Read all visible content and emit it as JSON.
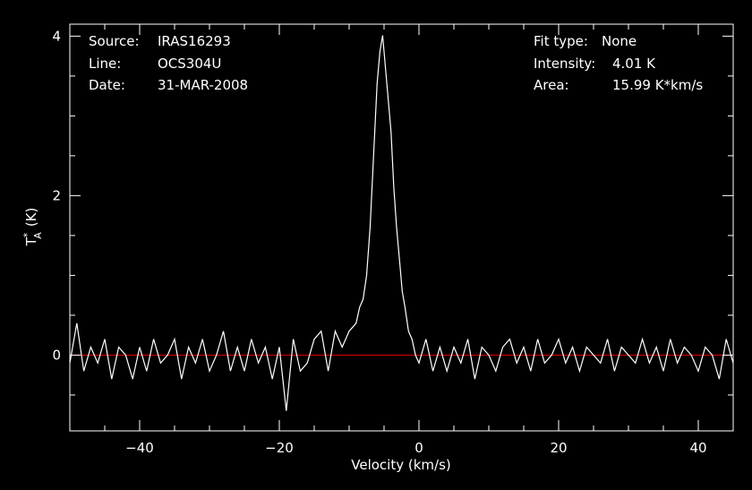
{
  "info": {
    "source_label": "Source:",
    "source_value": "IRAS16293",
    "line_label": "Line:",
    "line_value": "OCS304U",
    "date_label": "Date:",
    "date_value": "31-MAR-2008",
    "fit_label": "Fit type:",
    "fit_value": "None",
    "intensity_label": "Intensity:",
    "intensity_value": "4.01 K",
    "area_label": "Area:",
    "area_value": "15.99 K*km/s"
  },
  "colors": {
    "background": "#000000",
    "foreground": "#ffffff",
    "baseline": "#cc0000"
  },
  "chart_data": {
    "type": "line",
    "title": "",
    "xlabel": "Velocity (km/s)",
    "ylabel_main": "T",
    "ylabel_sup": "*",
    "ylabel_sub": "A",
    "ylabel_unit": "(K)",
    "xlim": [
      -50,
      45
    ],
    "ylim": [
      -0.95,
      4.15
    ],
    "x_ticks": [
      -40,
      -20,
      0,
      20,
      40
    ],
    "x_tick_labels": [
      "−40",
      "−20",
      "0",
      "20",
      "40"
    ],
    "y_ticks": [
      0,
      2,
      4
    ],
    "y_tick_labels": [
      "0",
      "2",
      "4"
    ],
    "baseline_y": 0,
    "grid": false,
    "series": [
      {
        "x": [
          -50.0,
          -49.0,
          -48.0,
          -47.0,
          -46.0,
          -45.0,
          -44.0,
          -43.0,
          -42.0,
          -41.0,
          -40.0,
          -39.0,
          -38.0,
          -37.0,
          -36.0,
          -35.0,
          -34.0,
          -33.0,
          -32.0,
          -31.0,
          -30.0,
          -29.0,
          -28.0,
          -27.0,
          -26.0,
          -25.0,
          -24.0,
          -23.0,
          -22.0,
          -21.0,
          -20.0,
          -19.0,
          -18.0,
          -17.0,
          -16.0,
          -15.0,
          -14.0,
          -13.0,
          -12.0,
          -11.0,
          -10.0,
          -9.0,
          -8.5,
          -8.0,
          -7.5,
          -7.0,
          -6.5,
          -6.0,
          -5.6,
          -5.2,
          -4.8,
          -4.4,
          -4.0,
          -3.6,
          -3.2,
          -2.8,
          -2.4,
          -2.0,
          -1.5,
          -1.0,
          -0.5,
          0.0,
          1.0,
          2.0,
          3.0,
          4.0,
          5.0,
          6.0,
          7.0,
          8.0,
          9.0,
          10.0,
          11.0,
          12.0,
          13.0,
          14.0,
          15.0,
          16.0,
          17.0,
          18.0,
          19.0,
          20.0,
          21.0,
          22.0,
          23.0,
          24.0,
          25.0,
          26.0,
          27.0,
          28.0,
          29.0,
          30.0,
          31.0,
          32.0,
          33.0,
          34.0,
          35.0,
          36.0,
          37.0,
          38.0,
          39.0,
          40.0,
          41.0,
          42.0,
          43.0,
          44.0,
          45.0
        ],
        "y": [
          -0.1,
          0.4,
          -0.2,
          0.1,
          -0.1,
          0.2,
          -0.3,
          0.1,
          0.0,
          -0.3,
          0.1,
          -0.2,
          0.2,
          -0.1,
          0.0,
          0.2,
          -0.3,
          0.1,
          -0.1,
          0.2,
          -0.2,
          0.0,
          0.3,
          -0.2,
          0.1,
          -0.2,
          0.2,
          -0.1,
          0.1,
          -0.3,
          0.1,
          -0.7,
          0.2,
          -0.2,
          -0.1,
          0.2,
          0.3,
          -0.2,
          0.3,
          0.1,
          0.3,
          0.4,
          0.6,
          0.7,
          1.0,
          1.6,
          2.5,
          3.4,
          3.8,
          4.01,
          3.6,
          3.2,
          2.8,
          2.1,
          1.6,
          1.2,
          0.8,
          0.6,
          0.3,
          0.2,
          0.0,
          -0.1,
          0.2,
          -0.2,
          0.1,
          -0.2,
          0.1,
          -0.1,
          0.2,
          -0.3,
          0.1,
          0.0,
          -0.2,
          0.1,
          0.2,
          -0.1,
          0.1,
          -0.2,
          0.2,
          -0.1,
          0.0,
          0.2,
          -0.1,
          0.1,
          -0.2,
          0.1,
          0.0,
          -0.1,
          0.2,
          -0.2,
          0.1,
          0.0,
          -0.1,
          0.2,
          -0.1,
          0.1,
          -0.2,
          0.2,
          -0.1,
          0.1,
          0.0,
          -0.2,
          0.1,
          0.0,
          -0.3,
          0.2,
          -0.1
        ]
      }
    ]
  }
}
